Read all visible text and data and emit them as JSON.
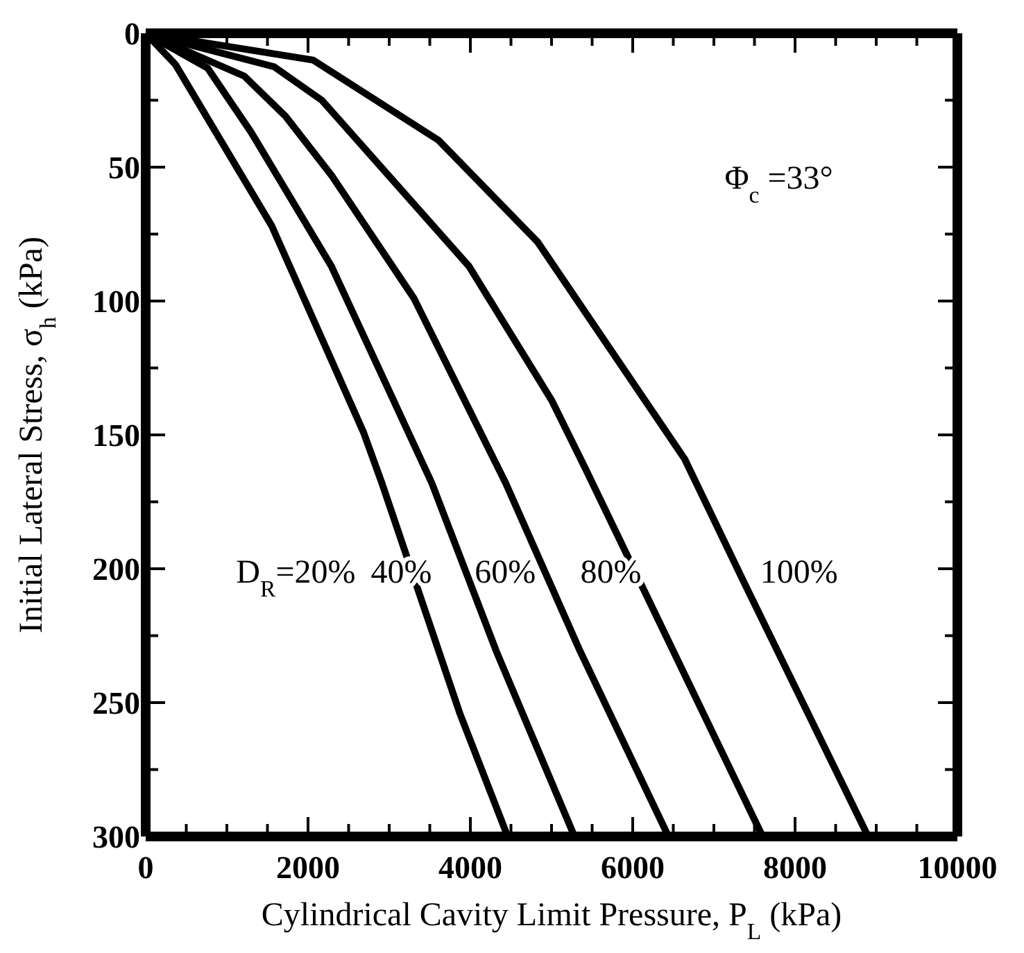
{
  "chart_data": {
    "type": "line",
    "xlabel": "Cylindrical Cavity Limit Pressure, P$_{L}$ (kPa)",
    "ylabel": "Initial Lateral Stress, σ$_{h}$ (kPa)",
    "series": [
      {
        "color": "#000000",
        "x": [
          0,
          367,
          1554,
          2683,
          2910,
          3870,
          4460
        ],
        "values": [
          0,
          11.7,
          72,
          149,
          168,
          254,
          300
        ]
      },
      {
        "color": "#000000",
        "x": [
          0,
          763,
          1300,
          2288,
          3525,
          4322,
          5283
        ],
        "values": [
          0,
          13,
          37,
          87,
          168,
          231,
          300
        ]
      },
      {
        "color": "#000000",
        "x": [
          0,
          1215,
          1723,
          2288,
          3305,
          4435,
          5340,
          6440
        ],
        "values": [
          0,
          16,
          31,
          53,
          99,
          168,
          230,
          300
        ]
      },
      {
        "color": "#000000",
        "x": [
          0,
          1582,
          2170,
          3983,
          5000,
          5424,
          7600
        ],
        "values": [
          0,
          12.5,
          25,
          87,
          137,
          163,
          300
        ]
      },
      {
        "color": "#000000",
        "x": [
          0,
          2063,
          3610,
          4830,
          6640,
          7370,
          8900
        ],
        "values": [
          0,
          10,
          40,
          78,
          159,
          205,
          300
        ]
      }
    ],
    "annotations": [
      "D$_{R}$=20%",
      "40%",
      "60%",
      "80%",
      "100%",
      "Φ$_{c}$ =33°"
    ],
    "xlim": [
      0,
      10000
    ],
    "xticks": [
      0,
      {
        "value": 500,
        "label": null
      },
      {
        "value": 1000,
        "label": null
      },
      {
        "value": 1500,
        "label": null
      },
      2000,
      {
        "value": 2500,
        "label": null
      },
      {
        "value": 3000,
        "label": null
      },
      {
        "value": 3500,
        "label": null
      },
      4000,
      {
        "value": 4500,
        "label": null
      },
      {
        "value": 5000,
        "label": null
      },
      {
        "value": 5500,
        "label": null
      },
      6000,
      {
        "value": 6500,
        "label": null
      },
      {
        "value": 7000,
        "label": null
      },
      {
        "value": 7500,
        "label": null
      },
      8000,
      {
        "value": 8500,
        "label": null
      },
      {
        "value": 9000,
        "label": null
      },
      {
        "value": 9500,
        "label": null
      },
      10000
    ],
    "ylim": [
      300,
      0
    ],
    "yticks": [
      0,
      {
        "value": 25,
        "label": null
      },
      50,
      {
        "value": 75,
        "label": null
      },
      100,
      {
        "value": 125,
        "label": null
      },
      150,
      {
        "value": 175,
        "label": null
      },
      200,
      {
        "value": 225,
        "label": null
      },
      250,
      {
        "value": 275,
        "label": null
      },
      300
    ],
    "legend": false,
    "marker": "none",
    "line_style": "solid"
  }
}
